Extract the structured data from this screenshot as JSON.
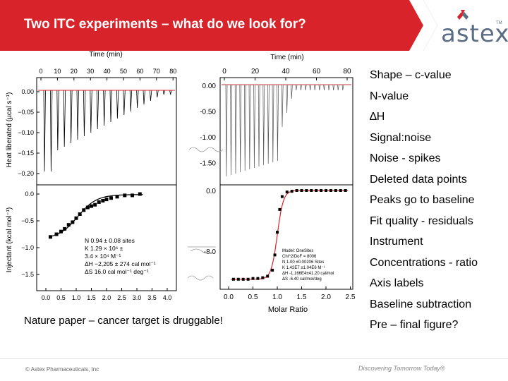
{
  "slide": {
    "title": "Two ITC experiments – what do we look for?",
    "caption": "Nature paper – cancer target is druggable!",
    "bullets": [
      "Shape – c-value",
      "N-value",
      "∆H",
      "Signal:noise",
      "Noise - spikes",
      "Deleted data points",
      "Peaks go to baseline",
      "Fit quality - residuals",
      "Instrument",
      "Concentrations - ratio",
      "Axis labels",
      "Baseline subtraction",
      "Pre – final figure?"
    ],
    "footer_left": "© Astex Pharmaceuticals, Inc",
    "footer_right": "Discovering Tomorrow Today®",
    "logo_text": "astex",
    "logo_tm": "TM"
  },
  "colors": {
    "header_red": "#d8232a",
    "logo": "#5b6d84",
    "fit_red": "#d8232a"
  },
  "figure_left": {
    "top_xlabel": "Time (min)",
    "top_ylabel": "Heat liberated (µcal s⁻¹)",
    "bottom_ylabel": "Injectant (kcal mol⁻¹)",
    "time_ticks": [
      "0",
      "10",
      "20",
      "30",
      "40",
      "50",
      "60",
      "70",
      "80"
    ],
    "heat_ticks": [
      "0.00",
      "−0.05",
      "−0.10",
      "−0.15",
      "−0.20"
    ],
    "inj_ticks": [
      "0.0",
      "−0.5",
      "−1.0",
      "−1.5"
    ],
    "ratio_ticks": [
      "0.0",
      "0.5",
      "1.0",
      "1.5",
      "2.0",
      "2.5",
      "3.0",
      "3.5",
      "4.0"
    ],
    "fit_params": [
      "N      0.94 ± 0.08 sites",
      "K      1.29 × 10⁶ ±",
      "         3.4 × 10⁴ M⁻¹",
      "ΔH   −2,205 ± 274 cal mol⁻¹",
      "ΔS   16.0 cal mol⁻¹ deg⁻¹"
    ]
  },
  "figure_right": {
    "top_xlabel": "Time (min)",
    "bottom_xlabel": "Molar Ratio",
    "time_ticks": [
      "0",
      "20",
      "40",
      "60",
      "80"
    ],
    "heat_ticks": [
      "0.00",
      "-0.50",
      "-1.00",
      "-1.50"
    ],
    "inj_ticks": [
      "0.0",
      "-8.0"
    ],
    "ratio_ticks": [
      "0.0",
      "0.5",
      "1.0",
      "1.5",
      "2.0",
      "2.5"
    ],
    "fit_params": [
      "Model: OneSites",
      "Chi^2/DoF = 8006",
      "N       1.00 ±0.00206 Sites",
      "K       1.42E7 ±1.04E6 M⁻¹",
      "ΔH     -1.166E4±41.20 cal/mol",
      "ΔS     -6.40 cal/mol/deg"
    ]
  },
  "chart_data": [
    {
      "type": "scatter",
      "title": "",
      "xlabel": "",
      "ylabel": "Injectant (kcal mol⁻¹)",
      "xlim": [
        0,
        4.2
      ],
      "ylim": [
        -1.75,
        0.15
      ],
      "series": [
        {
          "x": [
            0.15,
            0.35,
            0.5,
            0.62,
            0.75,
            0.88,
            1.0,
            1.12,
            1.25,
            1.38,
            1.5,
            1.62,
            1.75,
            1.88,
            2.0,
            2.15,
            2.35,
            2.6,
            2.85,
            3.1
          ],
          "y": [
            -1.6,
            -1.5,
            -1.4,
            -1.3,
            -1.15,
            -1.05,
            -0.9,
            -0.75,
            -0.6,
            -0.5,
            -0.45,
            -0.4,
            -0.3,
            -0.25,
            -0.2,
            -0.15,
            -0.1,
            -0.05,
            -0.05,
            0.0
          ]
        }
      ]
    },
    {
      "type": "scatter",
      "title": "",
      "xlabel": "Molar Ratio",
      "ylabel": "",
      "xlim": [
        0,
        2.6
      ],
      "ylim": [
        -12.5,
        0.5
      ],
      "series": [
        {
          "x": [
            0.1,
            0.2,
            0.3,
            0.4,
            0.5,
            0.6,
            0.7,
            0.8,
            0.9,
            0.95,
            1.0,
            1.05,
            1.1,
            1.2,
            1.3,
            1.4,
            1.5,
            1.6,
            1.7,
            1.8,
            1.9,
            2.0,
            2.1,
            2.2,
            2.3,
            2.4
          ],
          "y": [
            -11.7,
            -11.7,
            -11.7,
            -11.7,
            -11.6,
            -11.6,
            -11.5,
            -11.3,
            -10.5,
            -8.5,
            -5.5,
            -2.5,
            -0.8,
            -0.2,
            -0.1,
            0.0,
            0.0,
            0.0,
            0.0,
            0.0,
            0.0,
            0.0,
            0.0,
            0.0,
            0.0,
            0.0
          ]
        }
      ]
    }
  ]
}
